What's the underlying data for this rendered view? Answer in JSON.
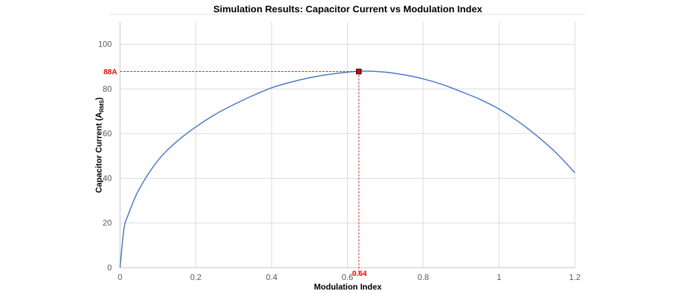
{
  "chart_data": {
    "type": "line",
    "title": "Simulation Results: Capacitor Current vs Modulation Index",
    "xlabel": "Modulation Index",
    "ylabel": {
      "main": "Capacitor Current (A",
      "sub": "RMS",
      "close": ")"
    },
    "xlim": [
      0,
      1.2
    ],
    "ylim": [
      0,
      110
    ],
    "x_ticks": [
      0,
      0.2,
      0.4,
      0.6,
      0.8,
      1,
      1.2
    ],
    "x_tick_labels": [
      "0",
      "0.2",
      "0.4",
      "0.6",
      "0.8",
      "1",
      "1.2"
    ],
    "y_ticks": [
      0,
      20,
      40,
      60,
      80,
      100
    ],
    "y_tick_labels": [
      "0",
      "20",
      "40",
      "60",
      "80",
      "100"
    ],
    "grid": true,
    "series": [
      {
        "color": "#4a7bc8",
        "x": [
          0,
          0.01,
          0.02,
          0.05,
          0.1,
          0.15,
          0.2,
          0.25,
          0.3,
          0.35,
          0.4,
          0.45,
          0.5,
          0.55,
          0.6,
          0.64,
          0.7,
          0.75,
          0.8,
          0.85,
          0.9,
          0.95,
          1.0,
          1.05,
          1.1,
          1.15,
          1.2
        ],
        "y": [
          0,
          17,
          23,
          35,
          48,
          56.5,
          63,
          68.5,
          73,
          77,
          80.5,
          83,
          85,
          86.5,
          87.5,
          88,
          87.5,
          86.3,
          84.5,
          82,
          78.8,
          75.3,
          71,
          65.5,
          59,
          51.5,
          42.5
        ]
      }
    ],
    "annotation": {
      "x": 0.63,
      "y": 87.8,
      "x_label": "0.64",
      "y_label": "88A",
      "color": "#ff0000"
    }
  }
}
